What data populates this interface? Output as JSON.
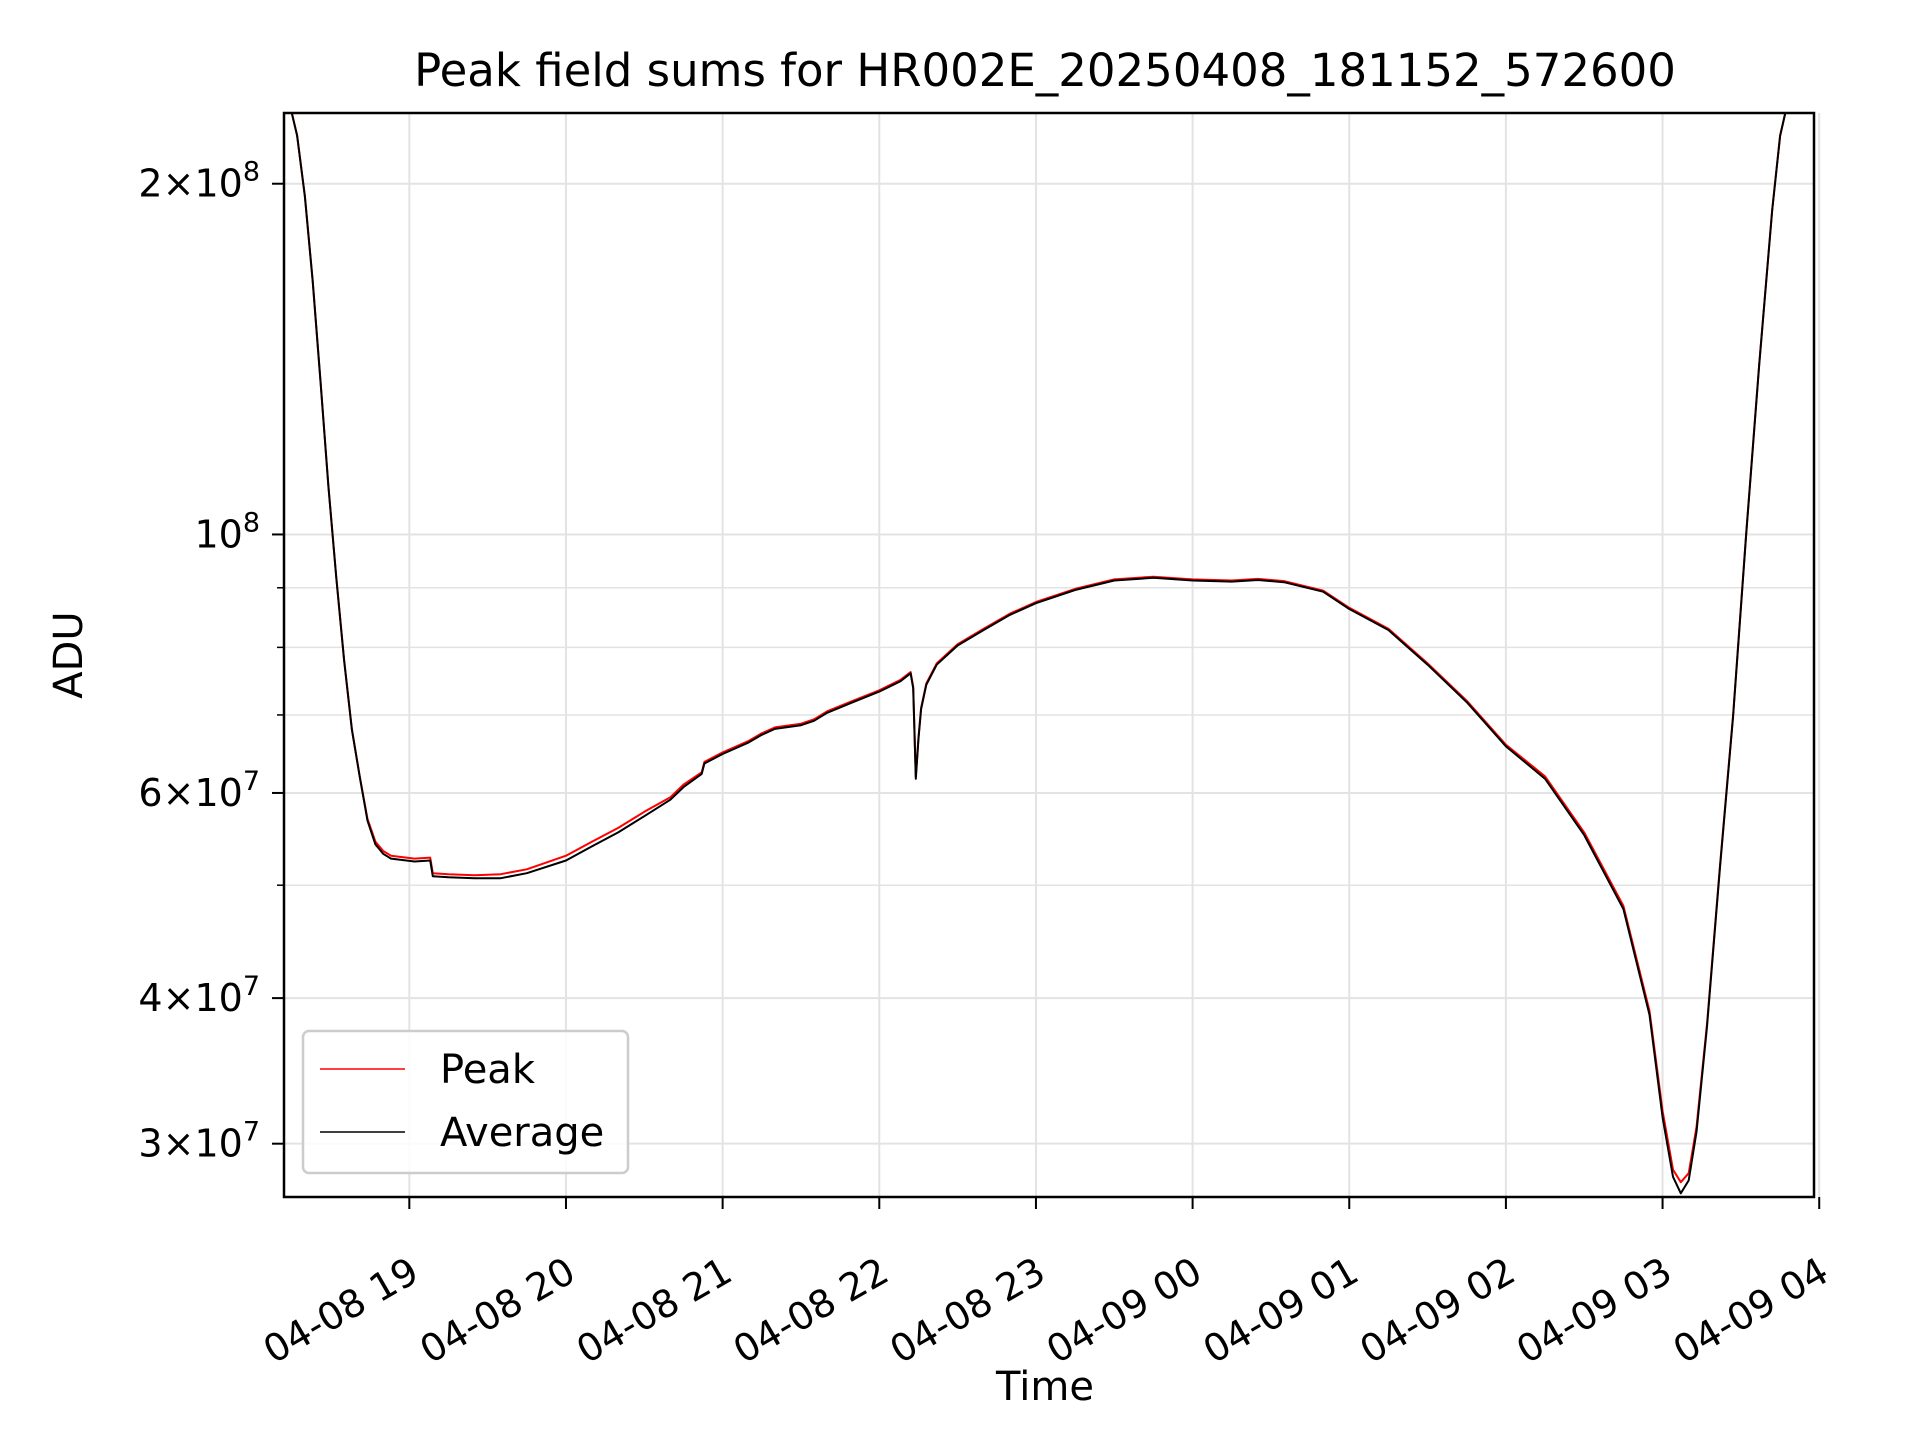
{
  "chart_data": {
    "type": "line",
    "title": "Peak field sums for HR002E_20250408_181152_572600",
    "xlabel": "Time",
    "ylabel": "ADU",
    "x_axis": {
      "kind": "datetime",
      "range": [
        "2025-04-08 18:12",
        "2025-04-09 03:58"
      ],
      "tick_labels": [
        "04-08 19",
        "04-08 20",
        "04-08 21",
        "04-08 22",
        "04-08 23",
        "04-09 00",
        "04-09 01",
        "04-09 02",
        "04-09 03",
        "04-09 04"
      ]
    },
    "y_axis": {
      "scale": "log",
      "range": [
        27000000,
        230000000
      ],
      "major_tick_labels": [
        {
          "value": 200000000,
          "mantissa": "2",
          "exp": "8"
        },
        {
          "value": 100000000,
          "mantissa": "",
          "exp": "8"
        },
        {
          "value": 60000000,
          "mantissa": "6",
          "exp": "7"
        },
        {
          "value": 40000000,
          "mantissa": "4",
          "exp": "7"
        },
        {
          "value": 30000000,
          "mantissa": "3",
          "exp": "7"
        }
      ],
      "minor_ticks": [
        50000000,
        70000000,
        80000000,
        90000000
      ]
    },
    "grid": true,
    "legend_position": "lower-left",
    "series": [
      {
        "name": "Peak",
        "color": "#ff0000",
        "points": [
          [
            "2025-04-08 18:12",
            230000000
          ],
          [
            "2025-04-08 18:15",
            230000000
          ],
          [
            "2025-04-08 18:17",
            220000000
          ],
          [
            "2025-04-08 18:20",
            195000000
          ],
          [
            "2025-04-08 18:23",
            165000000
          ],
          [
            "2025-04-08 18:26",
            135000000
          ],
          [
            "2025-04-08 18:29",
            110000000
          ],
          [
            "2025-04-08 18:32",
            92000000
          ],
          [
            "2025-04-08 18:35",
            78000000
          ],
          [
            "2025-04-08 18:38",
            68000000
          ],
          [
            "2025-04-08 18:41",
            62000000
          ],
          [
            "2025-04-08 18:44",
            57000000
          ],
          [
            "2025-04-08 18:47",
            54500000
          ],
          [
            "2025-04-08 18:50",
            53500000
          ],
          [
            "2025-04-08 18:53",
            53000000
          ],
          [
            "2025-04-08 19:02",
            52700000
          ],
          [
            "2025-04-08 19:08",
            52800000
          ],
          [
            "2025-04-08 19:09",
            51200000
          ],
          [
            "2025-04-08 19:15",
            51100000
          ],
          [
            "2025-04-08 19:25",
            51000000
          ],
          [
            "2025-04-08 19:35",
            51100000
          ],
          [
            "2025-04-08 19:45",
            51600000
          ],
          [
            "2025-04-08 20:00",
            53000000
          ],
          [
            "2025-04-08 20:10",
            54500000
          ],
          [
            "2025-04-08 20:20",
            56000000
          ],
          [
            "2025-04-08 20:30",
            57800000
          ],
          [
            "2025-04-08 20:40",
            59500000
          ],
          [
            "2025-04-08 20:45",
            61000000
          ],
          [
            "2025-04-08 20:52",
            62500000
          ],
          [
            "2025-04-08 20:53",
            63800000
          ],
          [
            "2025-04-08 21:00",
            65000000
          ],
          [
            "2025-04-08 21:10",
            66500000
          ],
          [
            "2025-04-08 21:15",
            67500000
          ],
          [
            "2025-04-08 21:20",
            68300000
          ],
          [
            "2025-04-08 21:30",
            68800000
          ],
          [
            "2025-04-08 21:35",
            69400000
          ],
          [
            "2025-04-08 21:40",
            70500000
          ],
          [
            "2025-04-08 21:50",
            72000000
          ],
          [
            "2025-04-08 22:00",
            73500000
          ],
          [
            "2025-04-08 22:08",
            75000000
          ],
          [
            "2025-04-08 22:12",
            76200000
          ],
          [
            "2025-04-08 22:13",
            74000000
          ],
          [
            "2025-04-08 22:14",
            62000000
          ],
          [
            "2025-04-08 22:15",
            67000000
          ],
          [
            "2025-04-08 22:16",
            71000000
          ],
          [
            "2025-04-08 22:18",
            74500000
          ],
          [
            "2025-04-08 22:22",
            77500000
          ],
          [
            "2025-04-08 22:30",
            80500000
          ],
          [
            "2025-04-08 22:40",
            83000000
          ],
          [
            "2025-04-08 22:50",
            85500000
          ],
          [
            "2025-04-08 23:00",
            87500000
          ],
          [
            "2025-04-08 23:15",
            89800000
          ],
          [
            "2025-04-08 23:30",
            91500000
          ],
          [
            "2025-04-08 23:45",
            92000000
          ],
          [
            "2025-04-09 00:00",
            91500000
          ],
          [
            "2025-04-09 00:15",
            91300000
          ],
          [
            "2025-04-09 00:25",
            91600000
          ],
          [
            "2025-04-09 00:35",
            91200000
          ],
          [
            "2025-04-09 00:50",
            89500000
          ],
          [
            "2025-04-09 01:00",
            86500000
          ],
          [
            "2025-04-09 01:15",
            83000000
          ],
          [
            "2025-04-09 01:30",
            77500000
          ],
          [
            "2025-04-09 01:45",
            72000000
          ],
          [
            "2025-04-09 02:00",
            66000000
          ],
          [
            "2025-04-09 02:15",
            62000000
          ],
          [
            "2025-04-09 02:30",
            55500000
          ],
          [
            "2025-04-09 02:45",
            48000000
          ],
          [
            "2025-04-09 02:55",
            39000000
          ],
          [
            "2025-04-09 03:00",
            32000000
          ],
          [
            "2025-04-09 03:04",
            28500000
          ],
          [
            "2025-04-09 03:07",
            27800000
          ],
          [
            "2025-04-09 03:10",
            28300000
          ],
          [
            "2025-04-09 03:13",
            31000000
          ],
          [
            "2025-04-09 03:17",
            38000000
          ],
          [
            "2025-04-09 03:22",
            52000000
          ],
          [
            "2025-04-09 03:27",
            70000000
          ],
          [
            "2025-04-09 03:32",
            100000000
          ],
          [
            "2025-04-09 03:37",
            140000000
          ],
          [
            "2025-04-09 03:42",
            190000000
          ],
          [
            "2025-04-09 03:45",
            220000000
          ],
          [
            "2025-04-09 03:47",
            230000000
          ],
          [
            "2025-04-09 03:58",
            230000000
          ]
        ]
      },
      {
        "name": "Average",
        "color": "#000000",
        "points": [
          [
            "2025-04-08 18:12",
            230000000
          ],
          [
            "2025-04-08 18:15",
            230000000
          ],
          [
            "2025-04-08 18:17",
            220000000
          ],
          [
            "2025-04-08 18:20",
            195000000
          ],
          [
            "2025-04-08 18:23",
            165000000
          ],
          [
            "2025-04-08 18:26",
            135000000
          ],
          [
            "2025-04-08 18:29",
            110000000
          ],
          [
            "2025-04-08 18:32",
            92000000
          ],
          [
            "2025-04-08 18:35",
            78000000
          ],
          [
            "2025-04-08 18:38",
            68000000
          ],
          [
            "2025-04-08 18:41",
            62000000
          ],
          [
            "2025-04-08 18:44",
            56800000
          ],
          [
            "2025-04-08 18:47",
            54200000
          ],
          [
            "2025-04-08 18:50",
            53200000
          ],
          [
            "2025-04-08 18:53",
            52700000
          ],
          [
            "2025-04-08 19:02",
            52400000
          ],
          [
            "2025-04-08 19:08",
            52500000
          ],
          [
            "2025-04-08 19:09",
            50900000
          ],
          [
            "2025-04-08 19:15",
            50800000
          ],
          [
            "2025-04-08 19:25",
            50700000
          ],
          [
            "2025-04-08 19:35",
            50700000
          ],
          [
            "2025-04-08 19:45",
            51200000
          ],
          [
            "2025-04-08 20:00",
            52500000
          ],
          [
            "2025-04-08 20:10",
            54000000
          ],
          [
            "2025-04-08 20:20",
            55500000
          ],
          [
            "2025-04-08 20:30",
            57300000
          ],
          [
            "2025-04-08 20:40",
            59200000
          ],
          [
            "2025-04-08 20:45",
            60700000
          ],
          [
            "2025-04-08 20:52",
            62300000
          ],
          [
            "2025-04-08 20:53",
            63600000
          ],
          [
            "2025-04-08 21:00",
            64800000
          ],
          [
            "2025-04-08 21:10",
            66300000
          ],
          [
            "2025-04-08 21:15",
            67300000
          ],
          [
            "2025-04-08 21:20",
            68100000
          ],
          [
            "2025-04-08 21:30",
            68600000
          ],
          [
            "2025-04-08 21:35",
            69200000
          ],
          [
            "2025-04-08 21:40",
            70300000
          ],
          [
            "2025-04-08 21:50",
            71800000
          ],
          [
            "2025-04-08 22:00",
            73300000
          ],
          [
            "2025-04-08 22:08",
            74800000
          ],
          [
            "2025-04-08 22:12",
            76000000
          ],
          [
            "2025-04-08 22:13",
            73800000
          ],
          [
            "2025-04-08 22:14",
            61700000
          ],
          [
            "2025-04-08 22:15",
            66800000
          ],
          [
            "2025-04-08 22:16",
            70800000
          ],
          [
            "2025-04-08 22:18",
            74300000
          ],
          [
            "2025-04-08 22:22",
            77300000
          ],
          [
            "2025-04-08 22:30",
            80300000
          ],
          [
            "2025-04-08 22:40",
            82800000
          ],
          [
            "2025-04-08 22:50",
            85300000
          ],
          [
            "2025-04-08 23:00",
            87300000
          ],
          [
            "2025-04-08 23:15",
            89600000
          ],
          [
            "2025-04-08 23:30",
            91300000
          ],
          [
            "2025-04-08 23:45",
            91800000
          ],
          [
            "2025-04-09 00:00",
            91300000
          ],
          [
            "2025-04-09 00:15",
            91100000
          ],
          [
            "2025-04-09 00:25",
            91400000
          ],
          [
            "2025-04-09 00:35",
            91000000
          ],
          [
            "2025-04-09 00:50",
            89300000
          ],
          [
            "2025-04-09 01:00",
            86300000
          ],
          [
            "2025-04-09 01:15",
            82800000
          ],
          [
            "2025-04-09 01:30",
            77300000
          ],
          [
            "2025-04-09 01:45",
            71800000
          ],
          [
            "2025-04-09 02:00",
            65800000
          ],
          [
            "2025-04-09 02:15",
            61700000
          ],
          [
            "2025-04-09 02:30",
            55200000
          ],
          [
            "2025-04-09 02:45",
            47700000
          ],
          [
            "2025-04-09 02:55",
            38700000
          ],
          [
            "2025-04-09 03:00",
            31600000
          ],
          [
            "2025-04-09 03:04",
            28100000
          ],
          [
            "2025-04-09 03:07",
            27200000
          ],
          [
            "2025-04-09 03:10",
            27900000
          ],
          [
            "2025-04-09 03:13",
            30700000
          ],
          [
            "2025-04-09 03:17",
            37800000
          ],
          [
            "2025-04-09 03:22",
            51800000
          ],
          [
            "2025-04-09 03:27",
            69800000
          ],
          [
            "2025-04-09 03:32",
            99800000
          ],
          [
            "2025-04-09 03:37",
            139800000
          ],
          [
            "2025-04-09 03:42",
            189800000
          ],
          [
            "2025-04-09 03:45",
            219800000
          ],
          [
            "2025-04-09 03:47",
            230000000
          ],
          [
            "2025-04-09 03:58",
            230000000
          ]
        ]
      }
    ]
  }
}
